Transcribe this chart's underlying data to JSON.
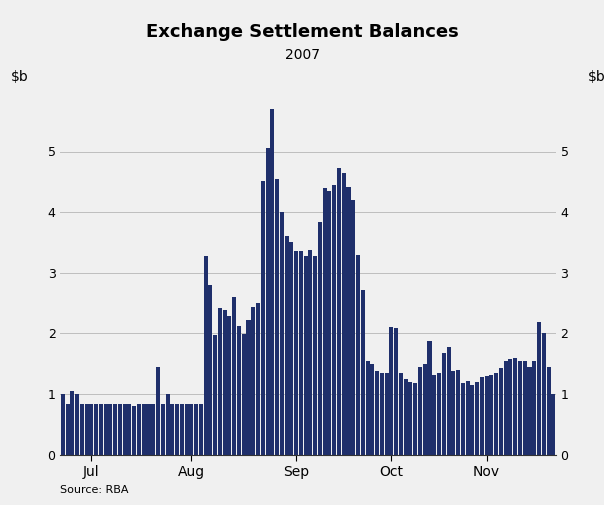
{
  "title": "Exchange Settlement Balances",
  "subtitle": "2007",
  "source": "Source: RBA",
  "bar_color": "#1F2F6B",
  "background_color": "#F0F0F0",
  "ylim": [
    0,
    6
  ],
  "yticks": [
    0,
    1,
    2,
    3,
    4,
    5
  ],
  "month_labels": [
    "Jul",
    "Aug",
    "Sep",
    "Oct",
    "Nov"
  ],
  "month_positions": [
    6,
    27,
    49,
    69,
    89
  ],
  "values": [
    1.0,
    0.83,
    1.05,
    1.0,
    0.83,
    0.83,
    0.83,
    0.83,
    0.83,
    0.83,
    0.83,
    0.83,
    0.83,
    0.83,
    0.83,
    0.8,
    0.83,
    0.83,
    0.83,
    0.83,
    1.45,
    0.83,
    1.0,
    0.83,
    0.83,
    0.83,
    0.83,
    0.83,
    0.83,
    0.83,
    3.28,
    2.8,
    1.97,
    2.42,
    2.38,
    2.28,
    2.6,
    2.12,
    1.99,
    2.22,
    2.43,
    2.5,
    4.52,
    5.05,
    5.7,
    4.55,
    4.0,
    3.6,
    3.5,
    3.35,
    3.35,
    3.27,
    3.38,
    3.28,
    3.83,
    4.4,
    4.35,
    4.45,
    4.72,
    4.65,
    4.42,
    4.2,
    3.3,
    2.72,
    1.55,
    1.5,
    1.38,
    1.35,
    1.35,
    2.1,
    2.08,
    1.35,
    1.25,
    1.2,
    1.18,
    1.45,
    1.5,
    1.87,
    1.32,
    1.35,
    1.68,
    1.78,
    1.37,
    1.4,
    1.18,
    1.22,
    1.15,
    1.2,
    1.28,
    1.3,
    1.32,
    1.35,
    1.42,
    1.55,
    1.58,
    1.6,
    1.55,
    1.55,
    1.45,
    1.55,
    2.18,
    2.0,
    1.45,
    1.0
  ]
}
